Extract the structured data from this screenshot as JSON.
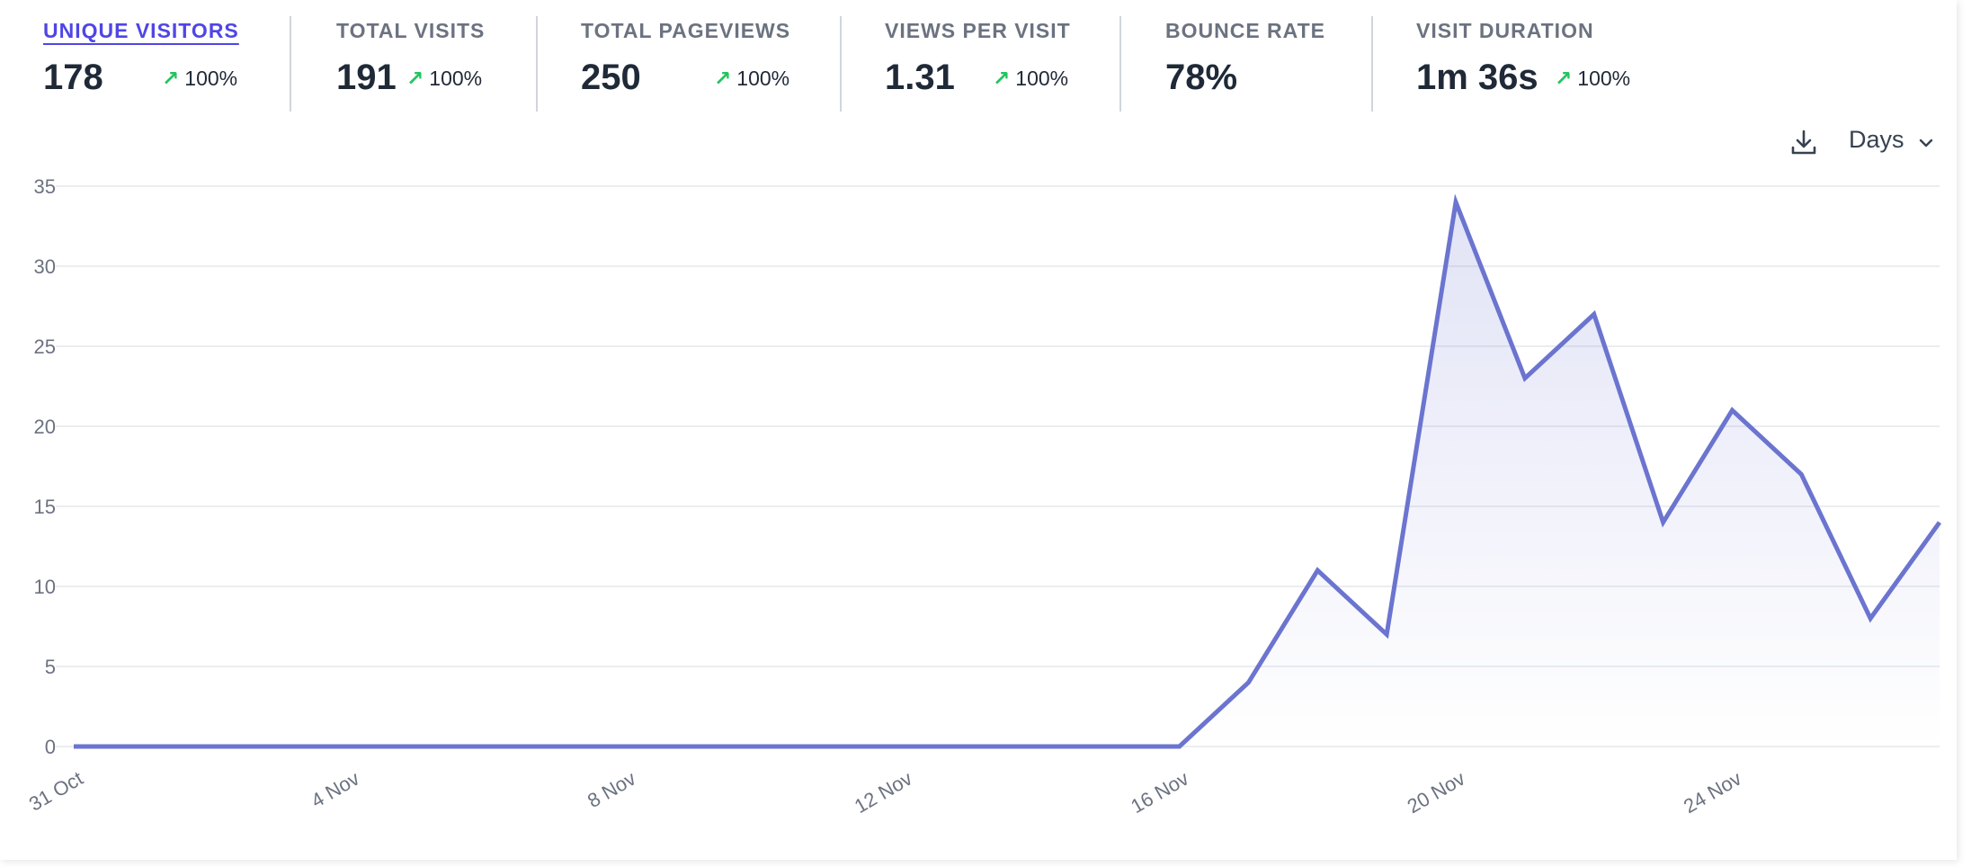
{
  "stats": [
    {
      "label": "UNIQUE VISITORS",
      "value": "178",
      "change": "100%",
      "arrow": "↗",
      "active": true
    },
    {
      "label": "TOTAL VISITS",
      "value": "191",
      "change": "100%",
      "arrow": "↗"
    },
    {
      "label": "TOTAL PAGEVIEWS",
      "value": "250",
      "change": "100%",
      "arrow": "↗"
    },
    {
      "label": "VIEWS PER VISIT",
      "value": "1.31",
      "change": "100%",
      "arrow": "↗"
    },
    {
      "label": "BOUNCE RATE",
      "value": "78%"
    },
    {
      "label": "VISIT DURATION",
      "value": "1m 36s",
      "change": "100%",
      "arrow": "↗"
    }
  ],
  "toolbar": {
    "download_icon": "download-icon",
    "interval_label": "Days",
    "chevron_icon": "chevron-down-icon"
  },
  "colors": {
    "line": "#6b74cf",
    "positive": "#22c55e",
    "active_label": "#4f46e5",
    "grid": "#e5e7eb"
  },
  "chart_data": {
    "type": "line",
    "x": [
      "31 Oct",
      "1 Nov",
      "2 Nov",
      "3 Nov",
      "4 Nov",
      "5 Nov",
      "6 Nov",
      "7 Nov",
      "8 Nov",
      "9 Nov",
      "10 Nov",
      "11 Nov",
      "12 Nov",
      "13 Nov",
      "14 Nov",
      "15 Nov",
      "16 Nov",
      "17 Nov",
      "18 Nov",
      "19 Nov",
      "20 Nov",
      "21 Nov",
      "22 Nov",
      "23 Nov",
      "24 Nov",
      "25 Nov",
      "26 Nov",
      "27 Nov"
    ],
    "x_tick_labels": [
      "31 Oct",
      "4 Nov",
      "8 Nov",
      "12 Nov",
      "16 Nov",
      "20 Nov",
      "24 Nov"
    ],
    "series": [
      {
        "values": [
          0,
          0,
          0,
          0,
          0,
          0,
          0,
          0,
          0,
          0,
          0,
          0,
          0,
          0,
          0,
          0,
          0,
          4,
          11,
          7,
          34,
          23,
          27,
          14,
          21,
          17,
          8,
          14
        ]
      }
    ],
    "yticks": [
      0,
      5,
      10,
      15,
      20,
      25,
      30,
      35
    ],
    "ylim": [
      0,
      35
    ],
    "grid": true,
    "fill": "area-gradient"
  }
}
